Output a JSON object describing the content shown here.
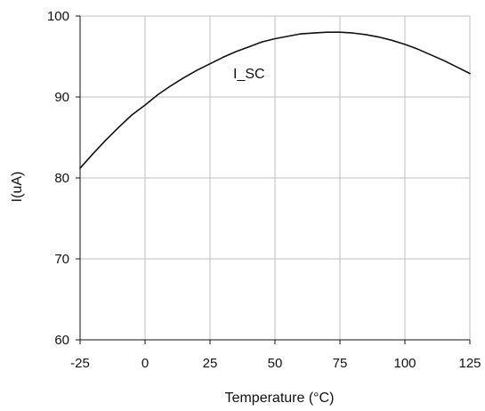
{
  "chart_data": {
    "type": "line",
    "title": "",
    "xlabel": "Temperature (°C)",
    "ylabel": "I(uA)",
    "xlim": [
      -25,
      125
    ],
    "ylim": [
      60,
      100
    ],
    "xticks": [
      -25,
      0,
      25,
      50,
      75,
      100,
      125
    ],
    "yticks": [
      60,
      70,
      80,
      90,
      100
    ],
    "grid": true,
    "legend": "none",
    "annotations": [
      {
        "text": "I_SC",
        "x": 40,
        "y": 92.3
      }
    ],
    "series": [
      {
        "color": "#111111",
        "x": [
          -25,
          -20,
          -15,
          -10,
          -5,
          0,
          5,
          10,
          15,
          20,
          25,
          30,
          35,
          40,
          45,
          50,
          55,
          60,
          65,
          70,
          75,
          80,
          85,
          90,
          95,
          100,
          105,
          110,
          115,
          120,
          125
        ],
        "y": [
          81.2,
          83.0,
          84.7,
          86.3,
          87.8,
          89.0,
          90.3,
          91.4,
          92.4,
          93.3,
          94.1,
          94.9,
          95.6,
          96.2,
          96.8,
          97.2,
          97.5,
          97.8,
          97.9,
          98.0,
          98.0,
          97.9,
          97.7,
          97.4,
          97.0,
          96.5,
          95.9,
          95.2,
          94.5,
          93.7,
          92.9
        ]
      }
    ]
  }
}
